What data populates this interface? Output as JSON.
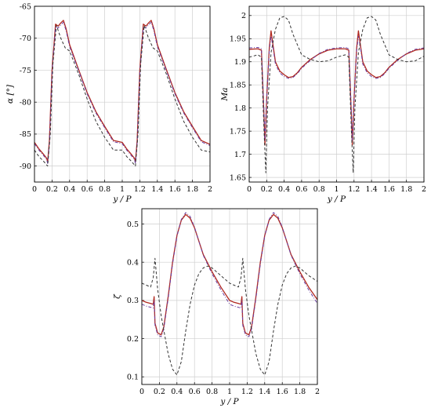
{
  "panels": [
    {
      "id": "alpha",
      "xlabel": "y / P",
      "ylabel": "α [°]",
      "xlim": [
        0,
        2
      ],
      "ylim": [
        -92.5,
        -65
      ],
      "xticks": [
        "0",
        "0.2",
        "0.4",
        "0.6",
        "0.8",
        "1",
        "1.2",
        "1.4",
        "1.6",
        "1.8",
        "2"
      ],
      "yticks": [
        "-90",
        "-85",
        "-80",
        "-75",
        "-70",
        "-65"
      ]
    },
    {
      "id": "mach",
      "xlabel": "y / P",
      "ylabel": "Ma",
      "xlim": [
        0,
        2
      ],
      "ylim": [
        1.64,
        2.02
      ],
      "xticks": [
        "0",
        "0.2",
        "0.4",
        "0.6",
        "0.8",
        "1",
        "1.2",
        "1.4",
        "1.6",
        "1.8",
        "2"
      ],
      "yticks": [
        "1.65",
        "1.7",
        "1.75",
        "1.8",
        "1.85",
        "1.9",
        "1.95",
        "2"
      ]
    },
    {
      "id": "zeta",
      "xlabel": "y / P",
      "ylabel": "ζ",
      "xlim": [
        0,
        2
      ],
      "ylim": [
        0.08,
        0.54
      ],
      "xticks": [
        "0",
        "0.2",
        "0.4",
        "0.6",
        "0.8",
        "1",
        "1.2",
        "1.4",
        "1.6",
        "1.8",
        "2"
      ],
      "yticks": [
        "0.1",
        "0.2",
        "0.3",
        "0.4",
        "0.5"
      ]
    }
  ],
  "chart_data": [
    {
      "type": "line",
      "xlabel": "y / P",
      "ylabel": "α [°]",
      "xlim": [
        0,
        2
      ],
      "ylim": [
        -92.5,
        -65
      ],
      "grid": true,
      "series": [
        {
          "style": "solid",
          "color": "#b0281f",
          "x": [
            0,
            0.05,
            0.1,
            0.14,
            0.15,
            0.17,
            0.2,
            0.24,
            0.27,
            0.3,
            0.33,
            0.36,
            0.4,
            0.5,
            0.6,
            0.7,
            0.8,
            0.9,
            1.0,
            1.05,
            1.1,
            1.14,
            1.15,
            1.17,
            1.2,
            1.24,
            1.27,
            1.3,
            1.33,
            1.36,
            1.4,
            1.5,
            1.6,
            1.7,
            1.8,
            1.9,
            2.0
          ],
          "y": [
            -86.3,
            -87.3,
            -88.1,
            -88.8,
            -89.4,
            -86,
            -75,
            -67.8,
            -68.1,
            -67.6,
            -67.2,
            -68.5,
            -71,
            -74.8,
            -78.5,
            -81.5,
            -83.8,
            -86,
            -86.3,
            -87.3,
            -88.1,
            -88.8,
            -89.4,
            -86,
            -75,
            -67.8,
            -68.1,
            -67.6,
            -67.2,
            -68.5,
            -71,
            -74.8,
            -78.5,
            -81.5,
            -83.8,
            -86,
            -86.6
          ]
        },
        {
          "style": "dashdot",
          "color": "#6b3fa0",
          "x": [
            0,
            0.05,
            0.1,
            0.14,
            0.15,
            0.17,
            0.2,
            0.24,
            0.27,
            0.3,
            0.33,
            0.36,
            0.4,
            0.5,
            0.6,
            0.7,
            0.8,
            0.9,
            1.0,
            1.05,
            1.1,
            1.14,
            1.15,
            1.17,
            1.2,
            1.24,
            1.27,
            1.3,
            1.33,
            1.36,
            1.4,
            1.5,
            1.6,
            1.7,
            1.8,
            1.9,
            2.0
          ],
          "y": [
            -86.5,
            -87.5,
            -88.3,
            -89,
            -89.6,
            -86.5,
            -75.5,
            -68.2,
            -68.4,
            -67.9,
            -67.5,
            -68.8,
            -71.3,
            -75,
            -78.7,
            -81.7,
            -84,
            -86.2,
            -86.5,
            -87.5,
            -88.3,
            -89,
            -89.6,
            -86.5,
            -75.5,
            -68.2,
            -68.4,
            -67.9,
            -67.5,
            -68.8,
            -71.3,
            -75,
            -78.7,
            -81.7,
            -84,
            -86.2,
            -86.8
          ]
        },
        {
          "style": "dashed",
          "color": "#333333",
          "x": [
            0,
            0.05,
            0.1,
            0.15,
            0.18,
            0.21,
            0.25,
            0.3,
            0.35,
            0.4,
            0.5,
            0.6,
            0.7,
            0.8,
            0.9,
            1.0,
            1.05,
            1.1,
            1.15,
            1.18,
            1.21,
            1.25,
            1.3,
            1.35,
            1.4,
            1.5,
            1.6,
            1.7,
            1.8,
            1.9,
            2.0
          ],
          "y": [
            -87.5,
            -88.5,
            -89.2,
            -90,
            -85,
            -74,
            -68,
            -70,
            -71.5,
            -72,
            -75.5,
            -79.5,
            -83,
            -85.5,
            -87.5,
            -87.5,
            -88.5,
            -89.2,
            -90,
            -85,
            -74,
            -68,
            -70,
            -71.5,
            -72,
            -75.5,
            -79.5,
            -83,
            -85.5,
            -87.5,
            -87.8
          ]
        }
      ]
    },
    {
      "type": "line",
      "xlabel": "y / P",
      "ylabel": "Ma",
      "xlim": [
        0,
        2
      ],
      "ylim": [
        1.64,
        2.02
      ],
      "grid": true,
      "series": [
        {
          "style": "solid",
          "color": "#b0281f",
          "x": [
            0,
            0.1,
            0.14,
            0.17,
            0.18,
            0.2,
            0.23,
            0.25,
            0.27,
            0.3,
            0.35,
            0.4,
            0.45,
            0.5,
            0.55,
            0.6,
            0.7,
            0.8,
            0.9,
            1.0,
            1.1,
            1.14,
            1.17,
            1.18,
            1.2,
            1.23,
            1.25,
            1.27,
            1.3,
            1.35,
            1.4,
            1.45,
            1.5,
            1.55,
            1.6,
            1.7,
            1.8,
            1.9,
            2.0
          ],
          "y": [
            1.927,
            1.928,
            1.925,
            1.78,
            1.72,
            1.82,
            1.93,
            1.967,
            1.94,
            1.9,
            1.88,
            1.872,
            1.866,
            1.868,
            1.876,
            1.888,
            1.905,
            1.917,
            1.925,
            1.928,
            1.928,
            1.925,
            1.78,
            1.72,
            1.82,
            1.93,
            1.967,
            1.94,
            1.9,
            1.88,
            1.872,
            1.866,
            1.868,
            1.876,
            1.888,
            1.905,
            1.917,
            1.925,
            1.928
          ]
        },
        {
          "style": "dashdot",
          "color": "#6b3fa0",
          "x": [
            0,
            0.1,
            0.14,
            0.17,
            0.18,
            0.2,
            0.23,
            0.25,
            0.27,
            0.3,
            0.35,
            0.4,
            0.45,
            0.5,
            0.55,
            0.6,
            0.7,
            0.8,
            0.9,
            1.0,
            1.1,
            1.14,
            1.17,
            1.18,
            1.2,
            1.23,
            1.25,
            1.27,
            1.3,
            1.35,
            1.4,
            1.45,
            1.5,
            1.55,
            1.6,
            1.7,
            1.8,
            1.9,
            2.0
          ],
          "y": [
            1.93,
            1.931,
            1.928,
            1.79,
            1.73,
            1.82,
            1.925,
            1.955,
            1.935,
            1.895,
            1.876,
            1.868,
            1.864,
            1.866,
            1.874,
            1.886,
            1.903,
            1.918,
            1.927,
            1.93,
            1.931,
            1.928,
            1.79,
            1.73,
            1.82,
            1.925,
            1.955,
            1.935,
            1.895,
            1.876,
            1.868,
            1.864,
            1.866,
            1.874,
            1.886,
            1.903,
            1.918,
            1.927,
            1.93
          ]
        },
        {
          "style": "dashed",
          "color": "#333333",
          "x": [
            0,
            0.1,
            0.14,
            0.17,
            0.19,
            0.21,
            0.25,
            0.3,
            0.35,
            0.4,
            0.45,
            0.5,
            0.6,
            0.7,
            0.8,
            0.9,
            1.0,
            1.1,
            1.14,
            1.17,
            1.19,
            1.21,
            1.25,
            1.3,
            1.35,
            1.4,
            1.45,
            1.5,
            1.6,
            1.7,
            1.8,
            1.9,
            2.0
          ],
          "y": [
            1.91,
            1.915,
            1.91,
            1.75,
            1.66,
            1.8,
            1.92,
            1.97,
            1.995,
            1.998,
            1.99,
            1.96,
            1.915,
            1.905,
            1.9,
            1.902,
            1.91,
            1.915,
            1.91,
            1.75,
            1.66,
            1.8,
            1.92,
            1.97,
            1.995,
            1.998,
            1.99,
            1.96,
            1.915,
            1.905,
            1.9,
            1.902,
            1.912
          ]
        }
      ]
    },
    {
      "type": "line",
      "xlabel": "y / P",
      "ylabel": "ζ",
      "xlim": [
        0,
        2
      ],
      "ylim": [
        0.08,
        0.54
      ],
      "grid": true,
      "series": [
        {
          "style": "solid",
          "color": "#b0281f",
          "x": [
            0,
            0.05,
            0.1,
            0.13,
            0.14,
            0.15,
            0.18,
            0.22,
            0.25,
            0.3,
            0.35,
            0.4,
            0.45,
            0.5,
            0.55,
            0.6,
            0.7,
            0.8,
            0.9,
            1.0,
            1.05,
            1.1,
            1.13,
            1.14,
            1.15,
            1.18,
            1.22,
            1.25,
            1.3,
            1.35,
            1.4,
            1.45,
            1.5,
            1.55,
            1.6,
            1.7,
            1.8,
            1.9,
            2.0
          ],
          "y": [
            0.3,
            0.295,
            0.292,
            0.29,
            0.31,
            0.24,
            0.215,
            0.21,
            0.23,
            0.31,
            0.4,
            0.47,
            0.51,
            0.525,
            0.515,
            0.49,
            0.42,
            0.375,
            0.335,
            0.3,
            0.295,
            0.292,
            0.29,
            0.31,
            0.24,
            0.215,
            0.21,
            0.23,
            0.31,
            0.4,
            0.47,
            0.51,
            0.525,
            0.515,
            0.49,
            0.42,
            0.375,
            0.335,
            0.302
          ]
        },
        {
          "style": "dashdot",
          "color": "#6b3fa0",
          "x": [
            0,
            0.05,
            0.1,
            0.13,
            0.14,
            0.15,
            0.18,
            0.22,
            0.25,
            0.3,
            0.35,
            0.4,
            0.45,
            0.5,
            0.55,
            0.6,
            0.7,
            0.8,
            0.9,
            1.0,
            1.05,
            1.1,
            1.13,
            1.14,
            1.15,
            1.18,
            1.22,
            1.25,
            1.3,
            1.35,
            1.4,
            1.45,
            1.5,
            1.55,
            1.6,
            1.7,
            1.8,
            1.9,
            2.0
          ],
          "y": [
            0.29,
            0.285,
            0.282,
            0.28,
            0.3,
            0.235,
            0.21,
            0.205,
            0.225,
            0.305,
            0.395,
            0.468,
            0.512,
            0.53,
            0.52,
            0.492,
            0.418,
            0.37,
            0.328,
            0.29,
            0.285,
            0.282,
            0.28,
            0.3,
            0.235,
            0.21,
            0.205,
            0.225,
            0.305,
            0.395,
            0.468,
            0.512,
            0.53,
            0.52,
            0.492,
            0.418,
            0.37,
            0.328,
            0.292
          ]
        },
        {
          "style": "dashed",
          "color": "#333333",
          "x": [
            0,
            0.05,
            0.1,
            0.13,
            0.15,
            0.18,
            0.22,
            0.26,
            0.3,
            0.35,
            0.4,
            0.45,
            0.5,
            0.55,
            0.6,
            0.65,
            0.7,
            0.75,
            0.8,
            0.9,
            1.0,
            1.05,
            1.1,
            1.13,
            1.15,
            1.18,
            1.22,
            1.26,
            1.3,
            1.35,
            1.4,
            1.45,
            1.5,
            1.55,
            1.6,
            1.65,
            1.7,
            1.75,
            1.8,
            1.9,
            2.0
          ],
          "y": [
            0.345,
            0.34,
            0.335,
            0.36,
            0.41,
            0.33,
            0.26,
            0.21,
            0.16,
            0.12,
            0.105,
            0.14,
            0.22,
            0.29,
            0.34,
            0.37,
            0.385,
            0.39,
            0.385,
            0.365,
            0.345,
            0.34,
            0.335,
            0.36,
            0.41,
            0.33,
            0.26,
            0.21,
            0.16,
            0.12,
            0.105,
            0.14,
            0.22,
            0.29,
            0.34,
            0.37,
            0.385,
            0.39,
            0.385,
            0.365,
            0.35
          ]
        }
      ]
    }
  ]
}
